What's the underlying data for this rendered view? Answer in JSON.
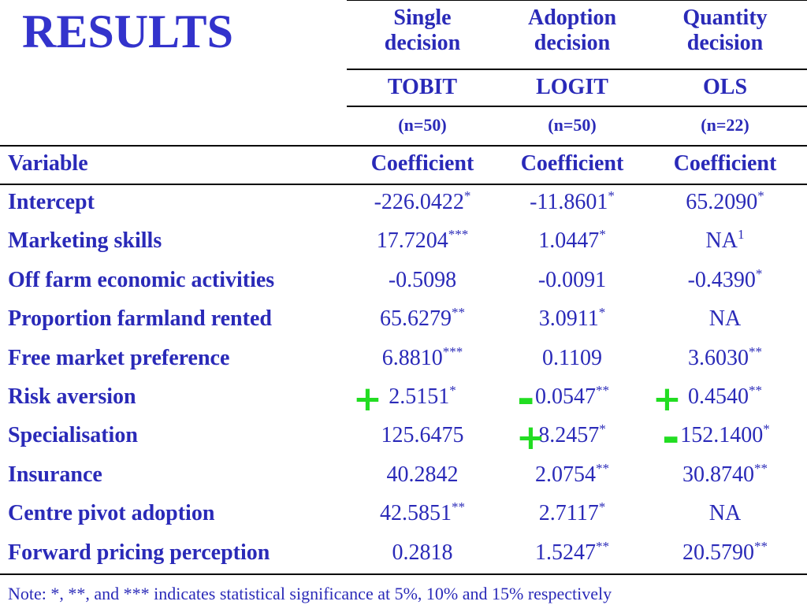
{
  "title": "RESULTS",
  "header": {
    "columns": [
      {
        "decision": [
          "Single",
          "decision"
        ],
        "model": "TOBIT",
        "n": "(n=50)"
      },
      {
        "decision": [
          "Adoption",
          "decision"
        ],
        "model": "LOGIT",
        "n": "(n=50)"
      },
      {
        "decision": [
          "Quantity",
          "decision"
        ],
        "model": "OLS",
        "n": "(n=22)"
      }
    ],
    "variable_label": "Variable",
    "coefficient_label": "Coefficient"
  },
  "rows": [
    {
      "variable": "Intercept",
      "values": [
        [
          "-226.0422",
          "*"
        ],
        [
          "-11.8601",
          "*"
        ],
        [
          "65.2090",
          "*"
        ]
      ]
    },
    {
      "variable": "Marketing skills",
      "values": [
        [
          "17.7204",
          "***"
        ],
        [
          "1.0447",
          "*"
        ],
        [
          "NA",
          "1"
        ]
      ]
    },
    {
      "variable": "Off farm economic activities",
      "values": [
        [
          "-0.5098",
          ""
        ],
        [
          "-0.0091",
          ""
        ],
        [
          "-0.4390",
          "*"
        ]
      ]
    },
    {
      "variable": "Proportion farmland rented",
      "values": [
        [
          "65.6279",
          "**"
        ],
        [
          "3.0911",
          "*"
        ],
        [
          "NA",
          ""
        ]
      ]
    },
    {
      "variable": "Free market preference",
      "values": [
        [
          "6.8810",
          "***"
        ],
        [
          "0.1109",
          ""
        ],
        [
          "3.6030",
          "**"
        ]
      ]
    },
    {
      "variable": "Risk aversion",
      "values": [
        [
          "2.5151",
          "*"
        ],
        [
          "0.0547",
          "**"
        ],
        [
          "0.4540",
          "**"
        ]
      ]
    },
    {
      "variable": "Specialisation",
      "values": [
        [
          "125.6475",
          ""
        ],
        [
          "8.2457",
          "*"
        ],
        [
          "152.1400",
          "*"
        ]
      ]
    },
    {
      "variable": "Insurance",
      "values": [
        [
          "40.2842",
          ""
        ],
        [
          "2.0754",
          "**"
        ],
        [
          "30.8740",
          "**"
        ]
      ]
    },
    {
      "variable": "Centre pivot adoption",
      "values": [
        [
          "42.5851",
          "**"
        ],
        [
          "2.7117",
          "*"
        ],
        [
          "NA",
          ""
        ]
      ]
    },
    {
      "variable": "Forward pricing perception",
      "values": [
        [
          "0.2818",
          ""
        ],
        [
          "1.5247",
          "**"
        ],
        [
          "20.5790",
          "**"
        ]
      ]
    }
  ],
  "annotations": [
    {
      "row": 5,
      "col": 0,
      "sign": "+"
    },
    {
      "row": 5,
      "col": 1,
      "sign": "-"
    },
    {
      "row": 5,
      "col": 2,
      "sign": "+"
    },
    {
      "row": 6,
      "col": 1,
      "sign": "+"
    },
    {
      "row": 6,
      "col": 2,
      "sign": "-"
    }
  ],
  "colors": {
    "text": "#2a2ab8",
    "title": "#3333cc",
    "annotation": "#22dd22"
  },
  "note": "Note: *, **, and *** indicates statistical significance at 5%, 10% and 15% respectively"
}
